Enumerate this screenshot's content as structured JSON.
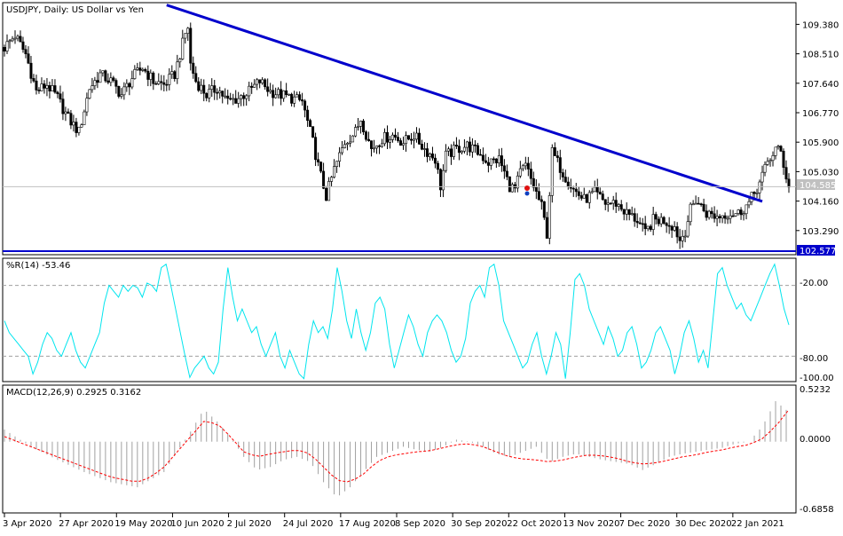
{
  "chart_data": [
    {
      "type": "candlestick",
      "title": "USDJPY, Daily:  US Dollar vs Yen",
      "y_ticks": [
        109.38,
        108.51,
        107.64,
        106.77,
        105.9,
        105.03,
        104.16,
        103.29
      ],
      "y_tick_labels": [
        "109.380",
        "108.510",
        "107.640",
        "106.770",
        "105.900",
        "105.030",
        "104.160",
        "103.290"
      ],
      "ylim": [
        102.577,
        110.02
      ],
      "last_price": 104.585,
      "last_price_label": "104.585",
      "support_level": 102.577,
      "support_label": "102.577",
      "trendline": {
        "from": {
          "index": 0,
          "value": 109.95
        },
        "to": {
          "index": 189,
          "value": 104.15
        }
      },
      "close_path": [
        [
          0,
          108.7
        ],
        [
          4,
          109.05
        ],
        [
          8,
          108.5
        ],
        [
          12,
          107.4
        ],
        [
          16,
          107.6
        ],
        [
          20,
          107.2
        ],
        [
          24,
          106.6
        ],
        [
          28,
          106.2
        ],
        [
          32,
          107.5
        ],
        [
          36,
          107.9
        ],
        [
          40,
          107.7
        ],
        [
          44,
          107.3
        ],
        [
          48,
          107.8
        ],
        [
          52,
          108.1
        ],
        [
          56,
          107.7
        ],
        [
          60,
          107.6
        ],
        [
          64,
          107.9
        ],
        [
          66,
          108.5
        ],
        [
          68,
          109.1
        ],
        [
          69,
          109.3
        ],
        [
          70,
          108.2
        ],
        [
          72,
          107.7
        ],
        [
          76,
          107.3
        ],
        [
          80,
          107.5
        ],
        [
          84,
          107.1
        ],
        [
          88,
          107.2
        ],
        [
          92,
          107.4
        ],
        [
          96,
          107.7
        ],
        [
          100,
          107.4
        ],
        [
          104,
          107.3
        ],
        [
          108,
          107.2
        ],
        [
          112,
          107.1
        ],
        [
          116,
          105.9
        ],
        [
          118,
          105.2
        ],
        [
          121,
          104.3
        ],
        [
          124,
          105.1
        ],
        [
          128,
          105.9
        ],
        [
          132,
          106.2
        ],
        [
          134,
          106.6
        ],
        [
          138,
          105.7
        ],
        [
          142,
          106.0
        ],
        [
          146,
          106.1
        ],
        [
          150,
          105.9
        ],
        [
          154,
          106.1
        ],
        [
          158,
          105.7
        ],
        [
          162,
          105.4
        ],
        [
          164,
          104.6
        ],
        [
          166,
          105.5
        ],
        [
          170,
          105.7
        ],
        [
          174,
          105.8
        ],
        [
          178,
          105.6
        ],
        [
          182,
          105.3
        ],
        [
          186,
          105.4
        ],
        [
          190,
          104.6
        ],
        [
          192,
          104.5
        ],
        [
          194,
          105.0
        ],
        [
          196,
          105.2
        ],
        [
          198,
          104.8
        ],
        [
          202,
          104.0
        ],
        [
          204,
          103.2
        ],
        [
          206,
          105.6
        ],
        [
          210,
          105.0
        ],
        [
          214,
          104.5
        ],
        [
          218,
          104.2
        ],
        [
          222,
          104.4
        ],
        [
          226,
          104.1
        ],
        [
          230,
          104.1
        ],
        [
          234,
          103.8
        ],
        [
          238,
          103.6
        ],
        [
          241,
          103.2
        ],
        [
          244,
          103.6
        ],
        [
          248,
          103.6
        ],
        [
          252,
          103.4
        ],
        [
          254,
          103.0
        ],
        [
          256,
          103.3
        ],
        [
          258,
          103.9
        ],
        [
          260,
          104.2
        ],
        [
          264,
          103.8
        ],
        [
          268,
          103.7
        ],
        [
          272,
          103.8
        ],
        [
          276,
          103.8
        ],
        [
          280,
          104.1
        ],
        [
          284,
          104.7
        ],
        [
          287,
          105.3
        ],
        [
          290,
          105.7
        ],
        [
          292,
          105.6
        ],
        [
          294,
          104.9
        ],
        [
          295,
          104.585
        ]
      ],
      "x_tick_labels": [
        "3 Apr 2020",
        "27 Apr 2020",
        "19 May 2020",
        "10 Jun 2020",
        "2 Jul 2020",
        "24 Jul 2020",
        "17 Aug 2020",
        "8 Sep 2020",
        "30 Sep 2020",
        "22 Oct 2020",
        "13 Nov 2020",
        "7 Dec 2020",
        "30 Dec 2020",
        "22 Jan 2021"
      ],
      "colors": {
        "candle": "#000000",
        "trendline": "#0000cc",
        "support": "#0000cc",
        "grid": "#c0c0c0",
        "last_price_box": "#c0c0c0"
      }
    },
    {
      "type": "line",
      "title": "%R(14) -53.46",
      "ylim": [
        -100,
        0
      ],
      "y_tick_labels": [
        "-20.00",
        "-80.00",
        "-100.00"
      ],
      "levels": [
        -20,
        -80
      ],
      "series": [
        {
          "values": [
            -50,
            -60,
            -65,
            -70,
            -75,
            -80,
            -95,
            -85,
            -70,
            -60,
            -65,
            -75,
            -80,
            -70,
            -60,
            -75,
            -85,
            -90,
            -80,
            -70,
            -60,
            -35,
            -20,
            -25,
            -30,
            -20,
            -25,
            -20,
            -22,
            -30,
            -18,
            -20,
            -25,
            -5,
            -2,
            -20,
            -40,
            -60,
            -80,
            -98,
            -90,
            -85,
            -80,
            -90,
            -95,
            -85,
            -40,
            -5,
            -30,
            -50,
            -40,
            -50,
            -60,
            -55,
            -70,
            -80,
            -70,
            -60,
            -80,
            -90,
            -75,
            -85,
            -95,
            -99,
            -70,
            -50,
            -60,
            -55,
            -65,
            -40,
            -5,
            -25,
            -50,
            -65,
            -40,
            -60,
            -75,
            -60,
            -35,
            -30,
            -40,
            -70,
            -90,
            -75,
            -60,
            -45,
            -55,
            -70,
            -80,
            -60,
            -50,
            -45,
            -50,
            -60,
            -75,
            -85,
            -80,
            -65,
            -35,
            -25,
            -20,
            -30,
            -5,
            -2,
            -20,
            -50,
            -60,
            -70,
            -80,
            -90,
            -85,
            -70,
            -60,
            -80,
            -95,
            -80,
            -60,
            -70,
            -99,
            -60,
            -15,
            -10,
            -20,
            -40,
            -50,
            -60,
            -70,
            -55,
            -65,
            -80,
            -75,
            -60,
            -55,
            -70,
            -90,
            -85,
            -75,
            -60,
            -55,
            -65,
            -75,
            -95,
            -80,
            -60,
            -50,
            -65,
            -85,
            -75,
            -90,
            -50,
            -10,
            -5,
            -20,
            -30,
            -40,
            -35,
            -45,
            -50,
            -40,
            -30,
            -20,
            -10,
            -2,
            -20,
            -40,
            -53.46
          ]
        }
      ],
      "colors": {
        "line": "#00e5ee",
        "levels": "#a0a0a0"
      }
    },
    {
      "type": "bar",
      "title": "MACD(12,26,9) 0.2925 0.3162",
      "ylim": [
        -0.6858,
        0.5232
      ],
      "y_tick_labels": [
        "0.5232",
        "0.0000",
        "-0.6858"
      ],
      "macd_path": [
        [
          0,
          0.12
        ],
        [
          10,
          -0.05
        ],
        [
          20,
          -0.18
        ],
        [
          30,
          -0.3
        ],
        [
          40,
          -0.4
        ],
        [
          50,
          -0.45
        ],
        [
          60,
          -0.3
        ],
        [
          65,
          -0.1
        ],
        [
          70,
          0.1
        ],
        [
          75,
          0.32
        ],
        [
          80,
          0.2
        ],
        [
          85,
          0.05
        ],
        [
          90,
          -0.15
        ],
        [
          95,
          -0.28
        ],
        [
          100,
          -0.25
        ],
        [
          105,
          -0.18
        ],
        [
          110,
          -0.15
        ],
        [
          115,
          -0.2
        ],
        [
          120,
          -0.4
        ],
        [
          125,
          -0.55
        ],
        [
          130,
          -0.45
        ],
        [
          135,
          -0.3
        ],
        [
          140,
          -0.15
        ],
        [
          145,
          -0.1
        ],
        [
          150,
          -0.05
        ],
        [
          155,
          -0.08
        ],
        [
          160,
          -0.1
        ],
        [
          165,
          -0.05
        ],
        [
          170,
          0.02
        ],
        [
          175,
          0.0
        ],
        [
          180,
          -0.05
        ],
        [
          185,
          -0.12
        ],
        [
          190,
          -0.15
        ],
        [
          195,
          -0.1
        ],
        [
          200,
          -0.05
        ],
        [
          205,
          -0.2
        ],
        [
          210,
          -0.15
        ],
        [
          215,
          -0.12
        ],
        [
          220,
          -0.15
        ],
        [
          225,
          -0.18
        ],
        [
          230,
          -0.2
        ],
        [
          235,
          -0.22
        ],
        [
          240,
          -0.28
        ],
        [
          245,
          -0.22
        ],
        [
          250,
          -0.15
        ],
        [
          255,
          -0.12
        ],
        [
          260,
          -0.1
        ],
        [
          265,
          -0.08
        ],
        [
          270,
          -0.06
        ],
        [
          275,
          -0.02
        ],
        [
          280,
          0.0
        ],
        [
          285,
          0.15
        ],
        [
          290,
          0.4
        ],
        [
          295,
          0.2925
        ]
      ],
      "signal_path": [
        [
          0,
          0.05
        ],
        [
          10,
          -0.05
        ],
        [
          20,
          -0.15
        ],
        [
          30,
          -0.25
        ],
        [
          40,
          -0.35
        ],
        [
          50,
          -0.4
        ],
        [
          55,
          -0.35
        ],
        [
          60,
          -0.25
        ],
        [
          65,
          -0.1
        ],
        [
          70,
          0.05
        ],
        [
          75,
          0.2
        ],
        [
          80,
          0.18
        ],
        [
          85,
          0.05
        ],
        [
          90,
          -0.1
        ],
        [
          95,
          -0.15
        ],
        [
          100,
          -0.12
        ],
        [
          105,
          -0.1
        ],
        [
          110,
          -0.08
        ],
        [
          115,
          -0.12
        ],
        [
          120,
          -0.25
        ],
        [
          125,
          -0.38
        ],
        [
          130,
          -0.4
        ],
        [
          135,
          -0.32
        ],
        [
          140,
          -0.2
        ],
        [
          145,
          -0.14
        ],
        [
          150,
          -0.12
        ],
        [
          155,
          -0.1
        ],
        [
          160,
          -0.09
        ],
        [
          165,
          -0.06
        ],
        [
          170,
          -0.03
        ],
        [
          175,
          -0.02
        ],
        [
          180,
          -0.05
        ],
        [
          185,
          -0.1
        ],
        [
          190,
          -0.15
        ],
        [
          195,
          -0.17
        ],
        [
          200,
          -0.18
        ],
        [
          205,
          -0.2
        ],
        [
          210,
          -0.18
        ],
        [
          215,
          -0.15
        ],
        [
          220,
          -0.13
        ],
        [
          225,
          -0.14
        ],
        [
          230,
          -0.16
        ],
        [
          235,
          -0.2
        ],
        [
          240,
          -0.22
        ],
        [
          245,
          -0.21
        ],
        [
          250,
          -0.18
        ],
        [
          255,
          -0.15
        ],
        [
          260,
          -0.13
        ],
        [
          265,
          -0.1
        ],
        [
          270,
          -0.08
        ],
        [
          275,
          -0.05
        ],
        [
          280,
          -0.03
        ],
        [
          285,
          0.03
        ],
        [
          290,
          0.15
        ],
        [
          295,
          0.3162
        ]
      ],
      "colors": {
        "histogram": "#a0a0a0",
        "signal": "#ff0000"
      }
    }
  ]
}
